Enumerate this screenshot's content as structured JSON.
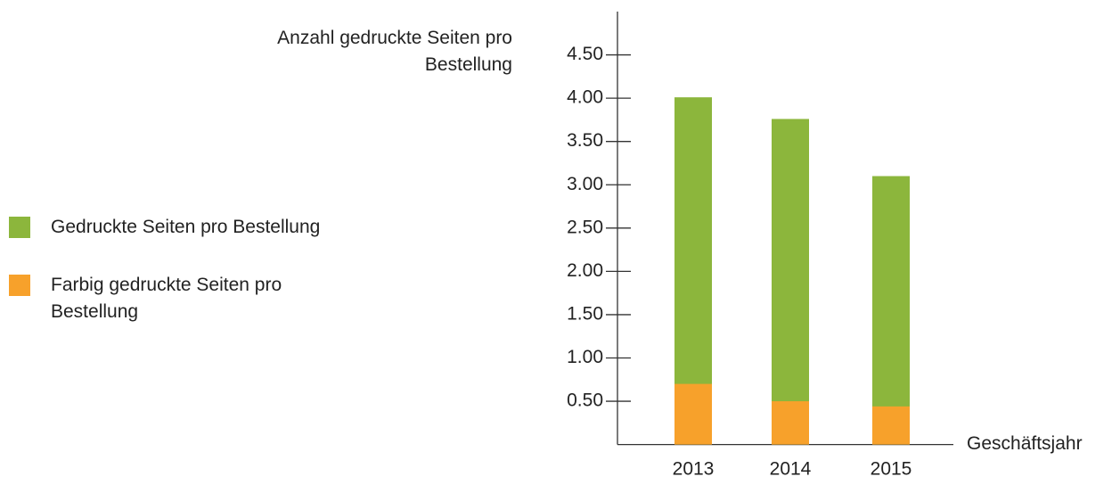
{
  "chart_data": {
    "type": "bar",
    "y_label": "Anzahl gedruckte Seiten pro Bestellung",
    "x_label": "Geschäftsjahr",
    "categories": [
      "2013",
      "2014",
      "2015"
    ],
    "series": [
      {
        "name": "Gedruckte Seiten pro Bestellung",
        "color": "#8cb63c",
        "values": [
          4.01,
          3.76,
          3.1
        ]
      },
      {
        "name": "Farbig gedruckte Seiten pro Bestellung",
        "color": "#f7a12b",
        "values": [
          0.7,
          0.5,
          0.44
        ]
      }
    ],
    "overlap": true,
    "ylim": [
      0,
      5
    ],
    "yticks": [
      {
        "value": 0.5,
        "label": "0.50"
      },
      {
        "value": 1,
        "label": "1.00"
      },
      {
        "value": 1.5,
        "label": "1.50"
      },
      {
        "value": 2,
        "label": "2.00"
      },
      {
        "value": 2.5,
        "label": "2.50"
      },
      {
        "value": 3,
        "label": "3.00"
      },
      {
        "value": 3.5,
        "label": "3.50"
      },
      {
        "value": 4,
        "label": "4.00"
      },
      {
        "value": 4.5,
        "label": "4.50"
      }
    ],
    "legend": "left"
  }
}
